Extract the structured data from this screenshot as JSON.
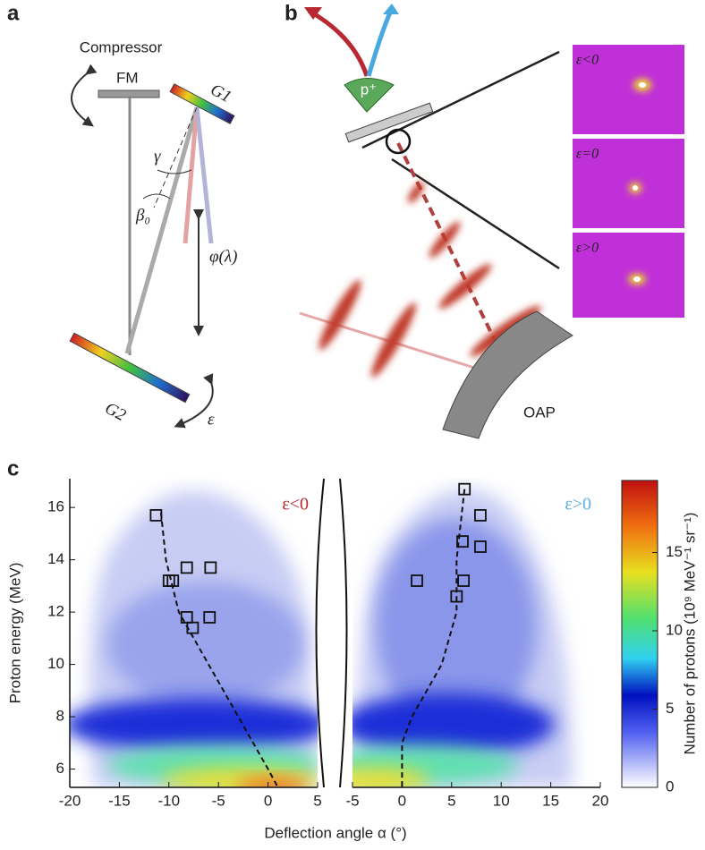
{
  "panel_labels": [
    "a",
    "b",
    "c"
  ],
  "diagram_a": {
    "compressor": "Compressor",
    "fm": "FM",
    "g1": "G1",
    "g2": "G2",
    "gamma": "γ",
    "beta": "β₀",
    "phi": "φ(λ)",
    "epsilon": "ε"
  },
  "diagram_b": {
    "proton": "p⁺",
    "oap": "OAP",
    "insets": [
      "ε<0",
      "ε=0",
      "ε>0"
    ]
  },
  "chart_data": [
    {
      "type": "scatter",
      "y_label": "Proton energy (MeV)",
      "x_label": "Deflection angle α (°)",
      "annotation": {
        "text": "ε<0",
        "color": "#c0282e"
      },
      "xlim": [
        -20,
        5
      ],
      "ylim": [
        5.3,
        17.1
      ],
      "xticks": [
        -20,
        -15,
        -10,
        -5,
        0,
        5
      ],
      "yticks": [
        6,
        8,
        10,
        12,
        14,
        16
      ],
      "series": [
        {
          "style": "markers",
          "color": "#111111",
          "x": [
            -11.3,
            -10,
            -9.6,
            -8.2,
            -5.8,
            -8.2,
            -7.6,
            -5.9
          ],
          "values": [
            15.7,
            13.2,
            13.2,
            13.7,
            13.7,
            11.8,
            11.4,
            11.8
          ]
        },
        {
          "style": "dashed",
          "color": "#111111",
          "x": [
            -10.8,
            -10.3,
            -9,
            -6,
            -3,
            0,
            1
          ],
          "values": [
            15.8,
            14,
            12,
            10,
            8,
            6,
            5.3
          ]
        }
      ]
    },
    {
      "type": "scatter",
      "annotation": {
        "text": "ε>0",
        "color": "#5aaee0"
      },
      "xlim": [
        -5,
        20
      ],
      "ylim": [
        5.3,
        17.1
      ],
      "xticks": [
        -5,
        0,
        5,
        10,
        15,
        20
      ],
      "series": [
        {
          "style": "markers",
          "color": "#111111",
          "x": [
            6.3,
            7.9,
            6.1,
            7.9,
            1.5,
            5.5,
            6.2
          ],
          "values": [
            16.7,
            15.7,
            14.7,
            14.5,
            13.2,
            12.6,
            13.2
          ]
        },
        {
          "style": "dashed",
          "color": "#111111",
          "x": [
            6.3,
            5.5,
            5.5,
            4,
            1,
            0,
            0
          ],
          "values": [
            16.7,
            14,
            12,
            10,
            8,
            7,
            5.3
          ]
        }
      ]
    }
  ],
  "colorbar": {
    "label": "Number of protons (10⁹ MeV⁻¹ sr⁻¹)",
    "lim": [
      0,
      19.6
    ],
    "ticks": [
      0,
      5,
      10,
      15
    ]
  }
}
